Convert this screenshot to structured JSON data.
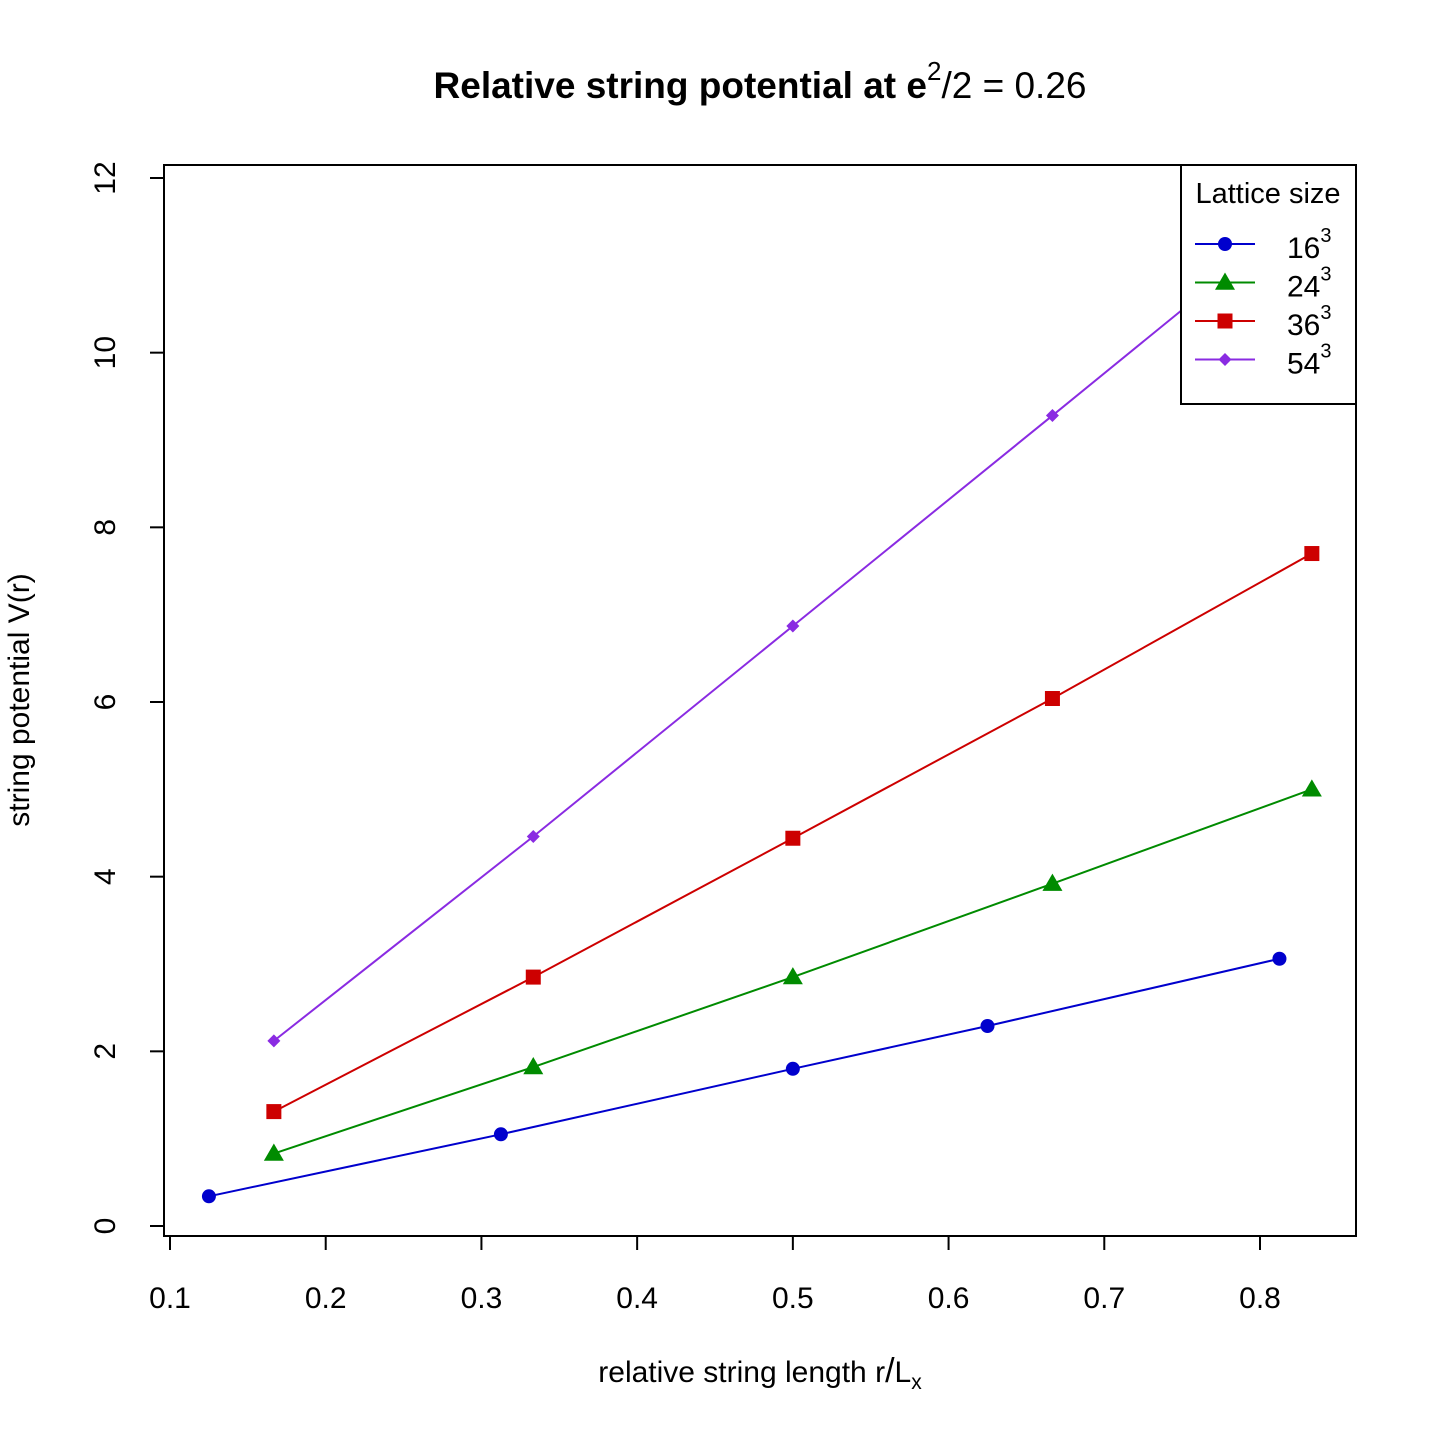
{
  "chart_data": {
    "type": "line",
    "title": {
      "prefix": "Relative string potential at ",
      "math_base": "e",
      "math_sup": "2",
      "math_rest": "/2 = 0.26"
    },
    "xlabel": {
      "text": "relative string length r",
      "slash": "/",
      "L": "L",
      "sub": "x"
    },
    "ylabel": "string potential V(r)",
    "xlim": [
      0.1,
      0.85
    ],
    "ylim": [
      0,
      12
    ],
    "xticks": [
      "0.1",
      "0.2",
      "0.3",
      "0.4",
      "0.5",
      "0.6",
      "0.7",
      "0.8"
    ],
    "yticks": [
      "0",
      "2",
      "4",
      "6",
      "8",
      "10",
      "12"
    ],
    "grid": false,
    "legend": {
      "title": "Lattice size",
      "position": "top-right"
    },
    "series": [
      {
        "name": "16",
        "sup": "3",
        "color": "#0000CD",
        "marker": "circle",
        "x": [
          0.125,
          0.3125,
          0.5,
          0.625,
          0.8125
        ],
        "y": [
          0.34,
          1.05,
          1.8,
          2.29,
          3.06
        ]
      },
      {
        "name": "24",
        "sup": "3",
        "color": "#008B00",
        "marker": "triangle",
        "x": [
          0.1667,
          0.3333,
          0.5,
          0.6667,
          0.8333
        ],
        "y": [
          0.83,
          1.82,
          2.85,
          3.92,
          5.0
        ]
      },
      {
        "name": "36",
        "sup": "3",
        "color": "#CD0000",
        "marker": "square",
        "x": [
          0.1667,
          0.3333,
          0.5,
          0.6667,
          0.8333
        ],
        "y": [
          1.31,
          2.85,
          4.44,
          6.04,
          7.7
        ]
      },
      {
        "name": "54",
        "sup": "3",
        "color": "#8A2BE2",
        "marker": "diamond",
        "x": [
          0.1667,
          0.3333,
          0.5,
          0.6667,
          0.8333
        ],
        "y": [
          2.12,
          4.46,
          6.87,
          9.28,
          11.7
        ]
      }
    ]
  }
}
